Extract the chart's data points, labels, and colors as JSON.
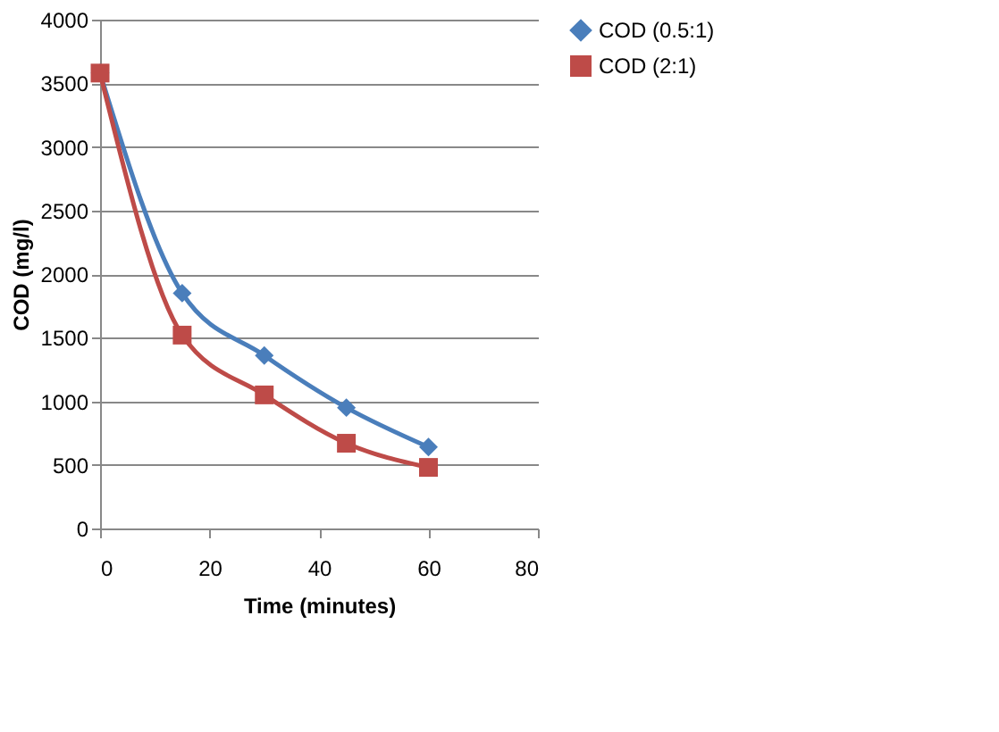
{
  "chart_data": {
    "type": "line",
    "xlabel": "Time (minutes)",
    "ylabel": "COD (mg/l)",
    "x": [
      0,
      15,
      30,
      45,
      60
    ],
    "series": [
      {
        "name": "COD (0.5:1)",
        "color": "#4a7ebb",
        "marker": "diamond",
        "values": [
          3580,
          1850,
          1360,
          950,
          640
        ]
      },
      {
        "name": "COD (2:1)",
        "color": "#be4b48",
        "marker": "square",
        "values": [
          3580,
          1520,
          1050,
          670,
          480
        ]
      }
    ],
    "xlim": [
      0,
      80
    ],
    "xticks": [
      0,
      20,
      40,
      60,
      80
    ],
    "ylim": [
      0,
      4000
    ],
    "yticks": [
      0,
      500,
      1000,
      1500,
      2000,
      2500,
      3000,
      3500,
      4000
    ],
    "grid": "y",
    "legend": "right",
    "line_style": "solid"
  }
}
